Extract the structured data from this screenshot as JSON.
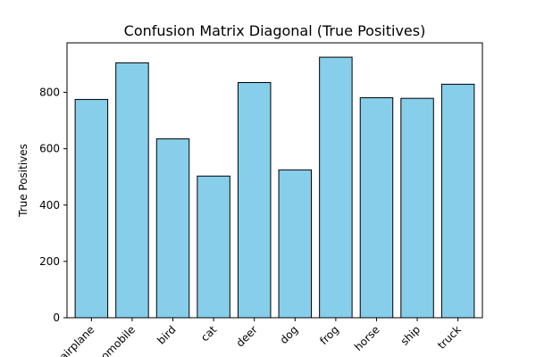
{
  "chart_data": {
    "type": "bar",
    "title": "Confusion Matrix Diagonal (True Positives)",
    "xlabel": "",
    "ylabel": "True Positives",
    "categories": [
      "airplane",
      "automobile",
      "bird",
      "cat",
      "deer",
      "dog",
      "frog",
      "horse",
      "ship",
      "truck"
    ],
    "values": [
      775,
      905,
      635,
      503,
      835,
      525,
      925,
      781,
      779,
      829
    ],
    "ylim": [
      0,
      976
    ],
    "yticks": [
      0,
      200,
      400,
      600,
      800
    ],
    "grid": false,
    "legend": "none",
    "colors": {
      "bar_fill": "#87ceeb",
      "bar_edge": "#000000"
    }
  }
}
